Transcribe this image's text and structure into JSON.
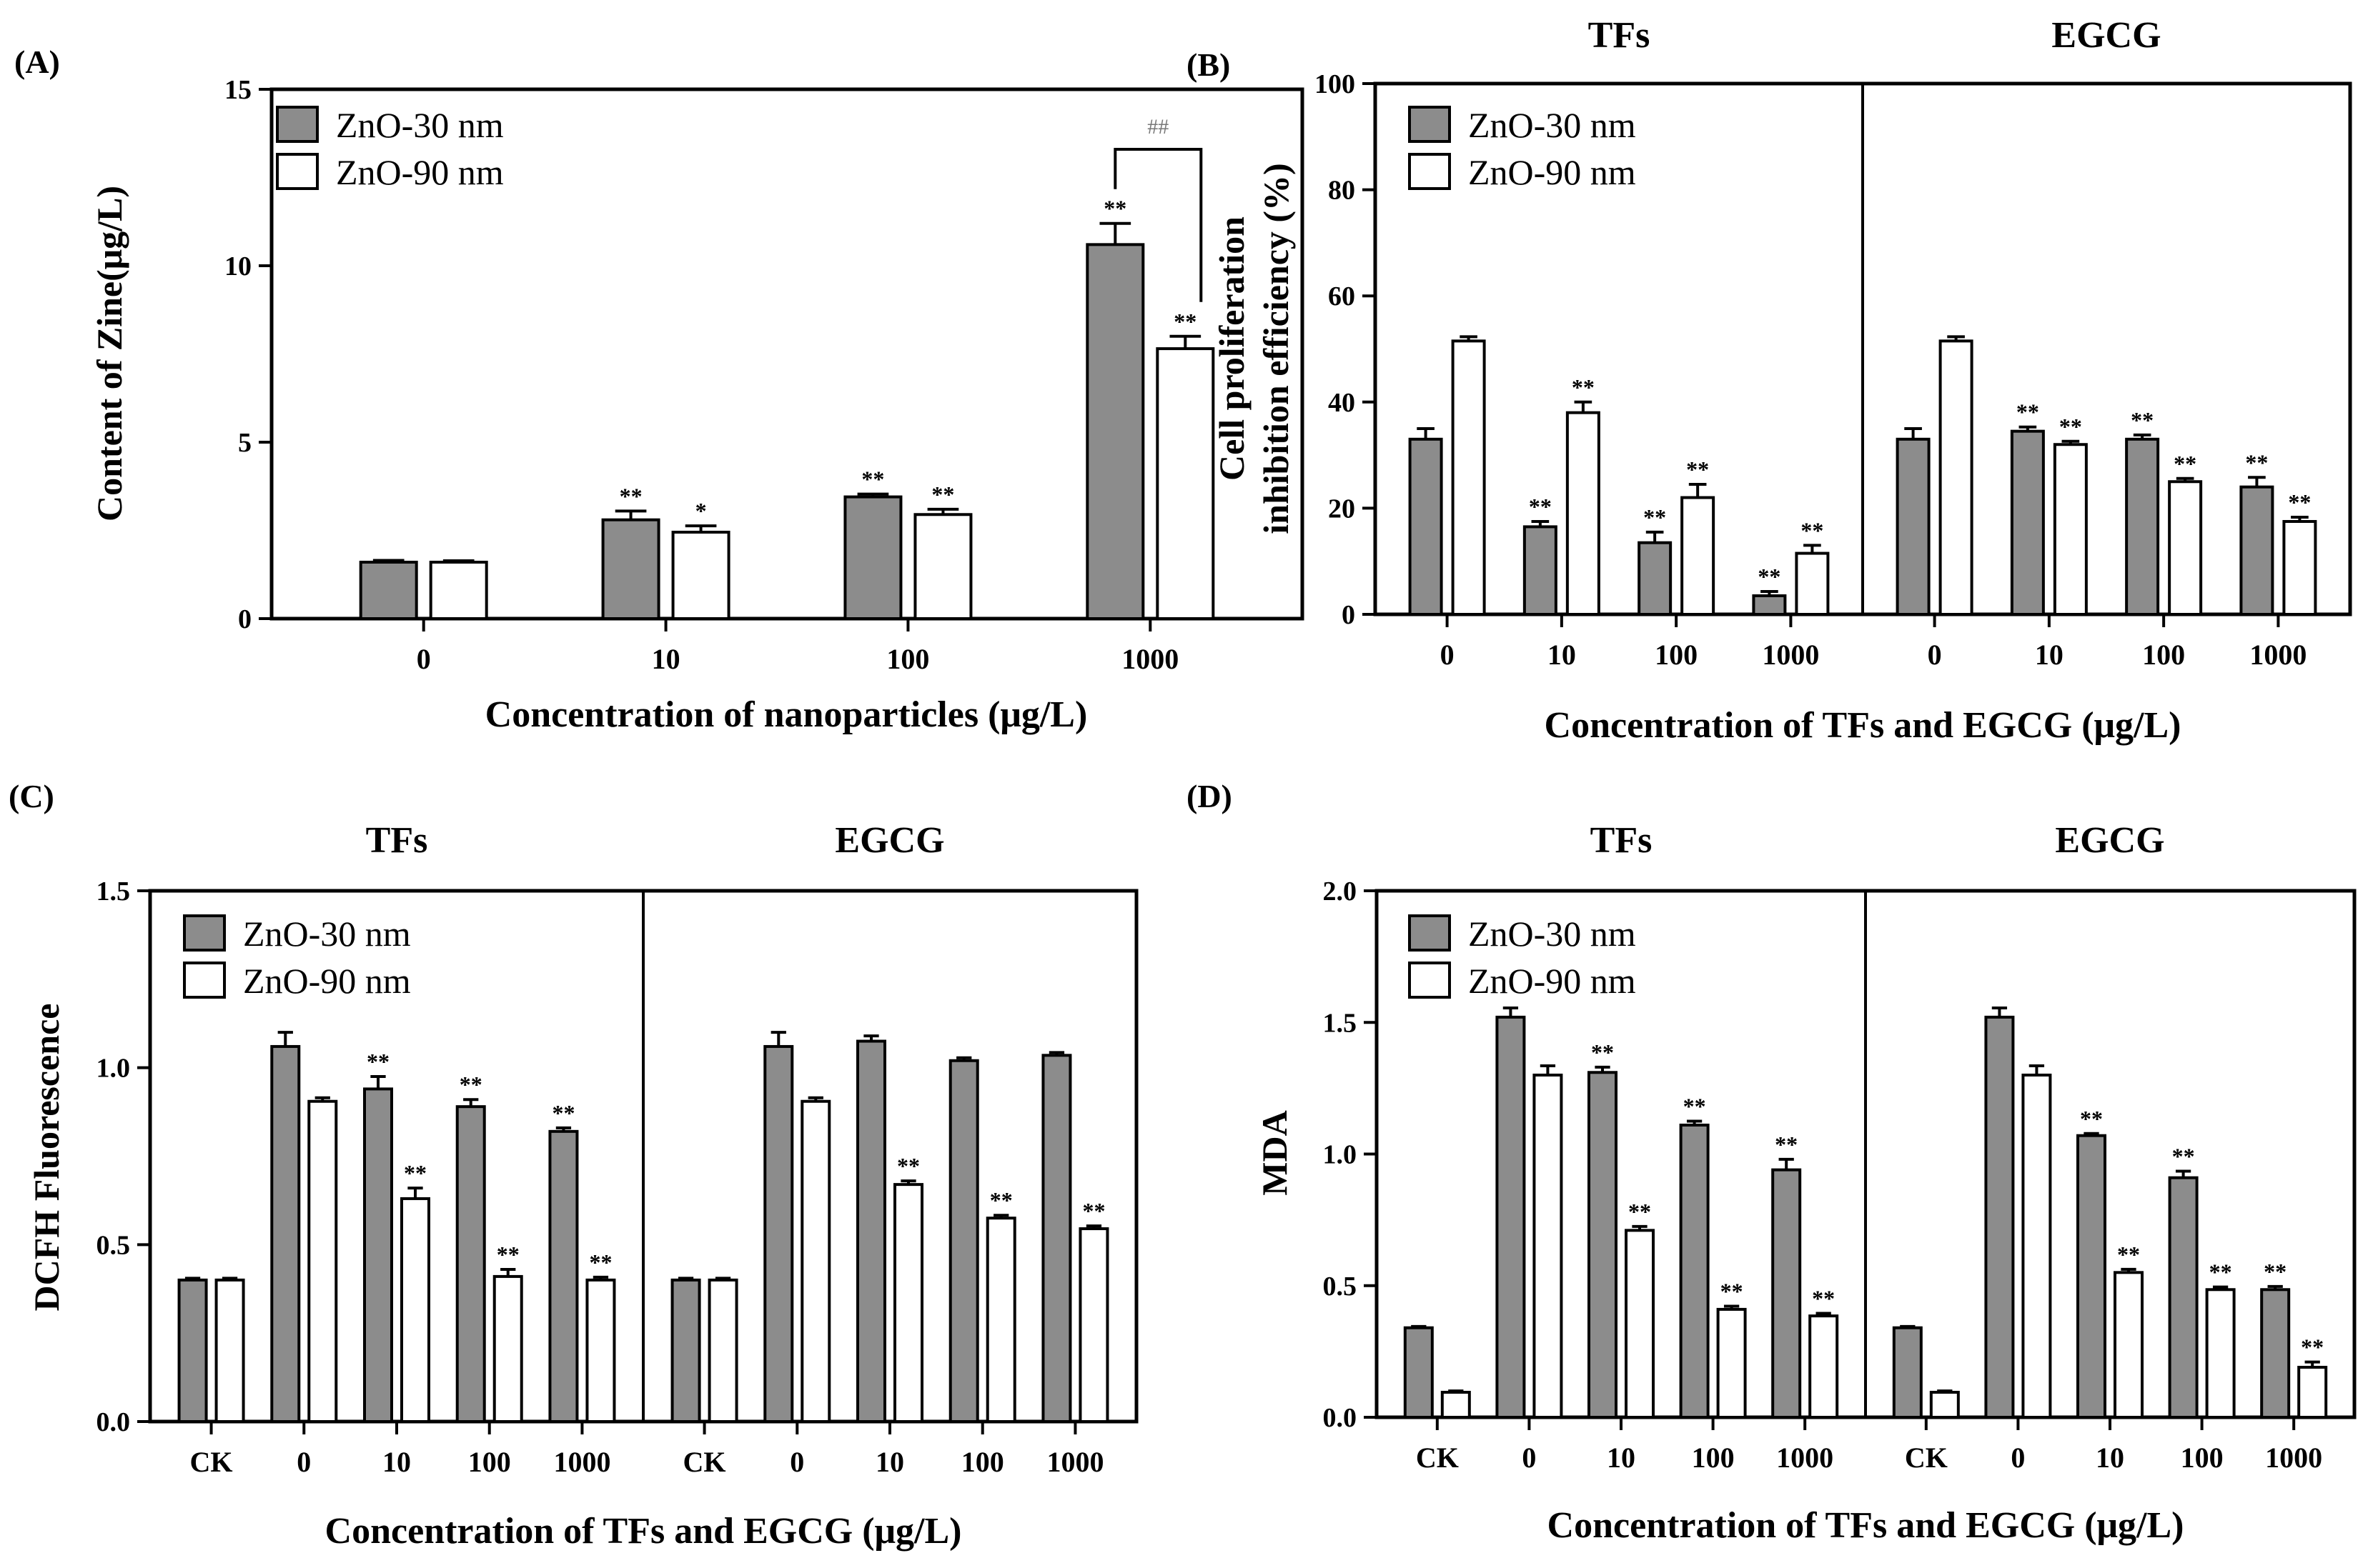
{
  "colors": {
    "series1_fill": "#8c8c8c",
    "series2_fill": "#ffffff",
    "axis": "#000000"
  },
  "chart_data": [
    {
      "panel": "(A)",
      "type": "bar",
      "ylabel": "Content of Zine(μg/L)",
      "xlabel": "Concentration of nanoparticles (μg/L)",
      "ylim": [
        0,
        15
      ],
      "yticks": [
        0,
        5,
        10,
        15
      ],
      "legend": [
        "ZnO-30 nm",
        "ZnO-90 nm"
      ],
      "groups": [
        {
          "title": "",
          "categories": [
            "0",
            "10",
            "100",
            "1000"
          ],
          "series": [
            {
              "name": "ZnO-30 nm",
              "values": [
                1.6,
                2.8,
                3.45,
                10.6
              ],
              "errors": [
                0.05,
                0.25,
                0.08,
                0.6
              ],
              "marks": [
                "",
                "**",
                "**",
                "**"
              ]
            },
            {
              "name": "ZnO-90 nm",
              "values": [
                1.6,
                2.45,
                2.95,
                7.65
              ],
              "errors": [
                0.04,
                0.18,
                0.15,
                0.35
              ],
              "marks": [
                "",
                "*",
                "**",
                "**"
              ]
            }
          ]
        }
      ],
      "bracket": {
        "category_index": 3,
        "label": "##"
      }
    },
    {
      "panel": "(B)",
      "type": "bar",
      "ylabel": [
        "Cell proliferation",
        "inhibition efficiency (%)"
      ],
      "xlabel": "Concentration of TFs and EGCG (μg/L)",
      "ylim": [
        0,
        100
      ],
      "yticks": [
        0,
        20,
        40,
        60,
        80,
        100
      ],
      "legend": [
        "ZnO-30 nm",
        "ZnO-90 nm"
      ],
      "groups": [
        {
          "title": "TFs",
          "categories": [
            "0",
            "10",
            "100",
            "1000"
          ],
          "series": [
            {
              "name": "ZnO-30 nm",
              "values": [
                33,
                16.5,
                13.5,
                3.5
              ],
              "errors": [
                2,
                1,
                2,
                0.8
              ],
              "marks": [
                "",
                "**",
                "**",
                "**"
              ]
            },
            {
              "name": "ZnO-90 nm",
              "values": [
                51.5,
                38,
                22,
                11.5
              ],
              "errors": [
                0.8,
                2,
                2.5,
                1.5
              ],
              "marks": [
                "",
                "**",
                "**",
                "**"
              ]
            }
          ]
        },
        {
          "title": "EGCG",
          "categories": [
            "0",
            "10",
            "100",
            "1000"
          ],
          "series": [
            {
              "name": "ZnO-30 nm",
              "values": [
                33,
                34.5,
                33,
                24
              ],
              "errors": [
                2,
                0.8,
                0.8,
                1.8
              ],
              "marks": [
                "",
                "**",
                "**",
                "**"
              ]
            },
            {
              "name": "ZnO-90 nm",
              "values": [
                51.5,
                32,
                25,
                17.5
              ],
              "errors": [
                0.8,
                0.6,
                0.6,
                0.8
              ],
              "marks": [
                "",
                "**",
                "**",
                "**"
              ]
            }
          ]
        }
      ]
    },
    {
      "panel": "(C)",
      "type": "bar",
      "ylabel": "DCFH Fluorescence",
      "xlabel": "Concentration of TFs and EGCG (μg/L)",
      "ylim": [
        0,
        1.5
      ],
      "yticks": [
        "0.0",
        "0.5",
        "1.0",
        "1.5"
      ],
      "legend": [
        "ZnO-30 nm",
        "ZnO-90 nm"
      ],
      "groups": [
        {
          "title": "TFs",
          "categories": [
            "CK",
            "0",
            "10",
            "100",
            "1000"
          ],
          "series": [
            {
              "name": "ZnO-30 nm",
              "values": [
                0.4,
                1.06,
                0.94,
                0.89,
                0.82
              ],
              "errors": [
                0.005,
                0.04,
                0.035,
                0.02,
                0.01
              ],
              "marks": [
                "",
                "",
                "**",
                "**",
                "**"
              ]
            },
            {
              "name": "ZnO-90 nm",
              "values": [
                0.4,
                0.905,
                0.63,
                0.41,
                0.4
              ],
              "errors": [
                0.005,
                0.01,
                0.03,
                0.02,
                0.008
              ],
              "marks": [
                "",
                "",
                "**",
                "**",
                "**"
              ]
            }
          ]
        },
        {
          "title": "EGCG",
          "categories": [
            "CK",
            "0",
            "10",
            "100",
            "1000"
          ],
          "series": [
            {
              "name": "ZnO-30 nm",
              "values": [
                0.4,
                1.06,
                1.075,
                1.02,
                1.035
              ],
              "errors": [
                0.005,
                0.04,
                0.015,
                0.008,
                0.008
              ],
              "marks": [
                "",
                "",
                "",
                "",
                ""
              ]
            },
            {
              "name": "ZnO-90 nm",
              "values": [
                0.4,
                0.905,
                0.67,
                0.575,
                0.545
              ],
              "errors": [
                0.005,
                0.01,
                0.01,
                0.008,
                0.008
              ],
              "marks": [
                "",
                "",
                "**",
                "**",
                "**"
              ]
            }
          ]
        }
      ]
    },
    {
      "panel": "(D)",
      "type": "bar",
      "ylabel": "MDA",
      "xlabel": "Concentration of TFs and EGCG (μg/L)",
      "ylim": [
        0,
        2.0
      ],
      "yticks": [
        "0.0",
        "0.5",
        "1.0",
        "1.5",
        "2.0"
      ],
      "legend": [
        "ZnO-30 nm",
        "ZnO-90 nm"
      ],
      "groups": [
        {
          "title": "TFs",
          "categories": [
            "CK",
            "0",
            "10",
            "100",
            "1000"
          ],
          "series": [
            {
              "name": "ZnO-30 nm",
              "values": [
                0.34,
                1.52,
                1.31,
                1.11,
                0.94
              ],
              "errors": [
                0.005,
                0.035,
                0.02,
                0.015,
                0.04
              ],
              "marks": [
                "",
                "",
                "**",
                "**",
                "**"
              ]
            },
            {
              "name": "ZnO-90 nm",
              "values": [
                0.095,
                1.3,
                0.71,
                0.41,
                0.385
              ],
              "errors": [
                0.005,
                0.035,
                0.015,
                0.012,
                0.01
              ],
              "marks": [
                "",
                "",
                "**",
                "**",
                "**"
              ]
            }
          ]
        },
        {
          "title": "EGCG",
          "categories": [
            "CK",
            "0",
            "10",
            "100",
            "1000"
          ],
          "series": [
            {
              "name": "ZnO-30 nm",
              "values": [
                0.34,
                1.52,
                1.07,
                0.91,
                0.485
              ],
              "errors": [
                0.005,
                0.035,
                0.008,
                0.025,
                0.012
              ],
              "marks": [
                "",
                "",
                "**",
                "**",
                "**"
              ]
            },
            {
              "name": "ZnO-90 nm",
              "values": [
                0.095,
                1.3,
                0.55,
                0.485,
                0.19
              ],
              "errors": [
                0.005,
                0.035,
                0.012,
                0.01,
                0.02
              ],
              "marks": [
                "",
                "",
                "**",
                "**",
                "**"
              ]
            }
          ]
        }
      ]
    }
  ]
}
